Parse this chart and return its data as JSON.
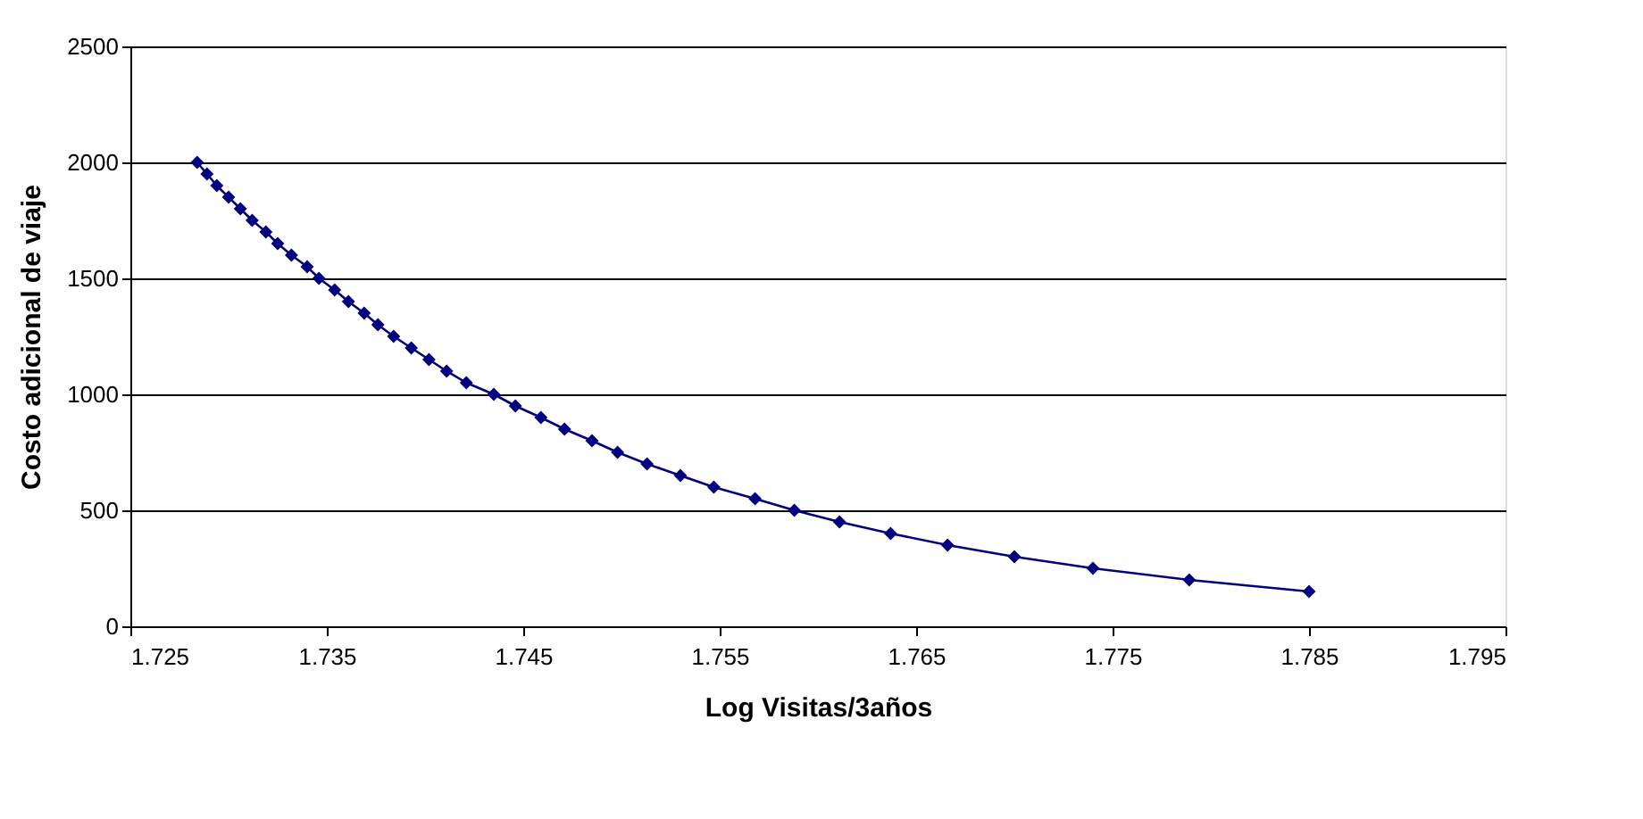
{
  "chart_data": {
    "type": "line",
    "xlabel": "Log Visitas/3años",
    "ylabel": "Costo adicional de viaje",
    "x": [
      1.7284,
      1.7289,
      1.7294,
      1.73,
      1.7306,
      1.7312,
      1.7319,
      1.7325,
      1.7332,
      1.734,
      1.7346,
      1.7354,
      1.7361,
      1.7369,
      1.7376,
      1.7384,
      1.7393,
      1.7402,
      1.7411,
      1.7421,
      1.7435,
      1.7446,
      1.7459,
      1.7471,
      1.7485,
      1.7498,
      1.7513,
      1.753,
      1.7547,
      1.7568,
      1.7588,
      1.7611,
      1.7637,
      1.7666,
      1.77,
      1.774,
      1.7789,
      1.785
    ],
    "series": [
      {
        "color": "#000080",
        "values": [
          2000,
          1950,
          1900,
          1850,
          1800,
          1750,
          1700,
          1650,
          1600,
          1550,
          1500,
          1450,
          1400,
          1350,
          1300,
          1250,
          1200,
          1150,
          1100,
          1050,
          1000,
          950,
          900,
          850,
          800,
          750,
          700,
          650,
          600,
          550,
          500,
          450,
          400,
          350,
          300,
          250,
          200,
          150
        ]
      }
    ],
    "xlim": [
      1.725,
      1.795
    ],
    "xticks": [
      1.725,
      1.735,
      1.745,
      1.755,
      1.765,
      1.775,
      1.785,
      1.795
    ],
    "ylim": [
      0,
      2500
    ],
    "yticks": [
      0,
      500,
      1000,
      1500,
      2000,
      2500
    ],
    "grid": "y",
    "marker": "diamond",
    "line_style": "solid",
    "legend": false
  }
}
